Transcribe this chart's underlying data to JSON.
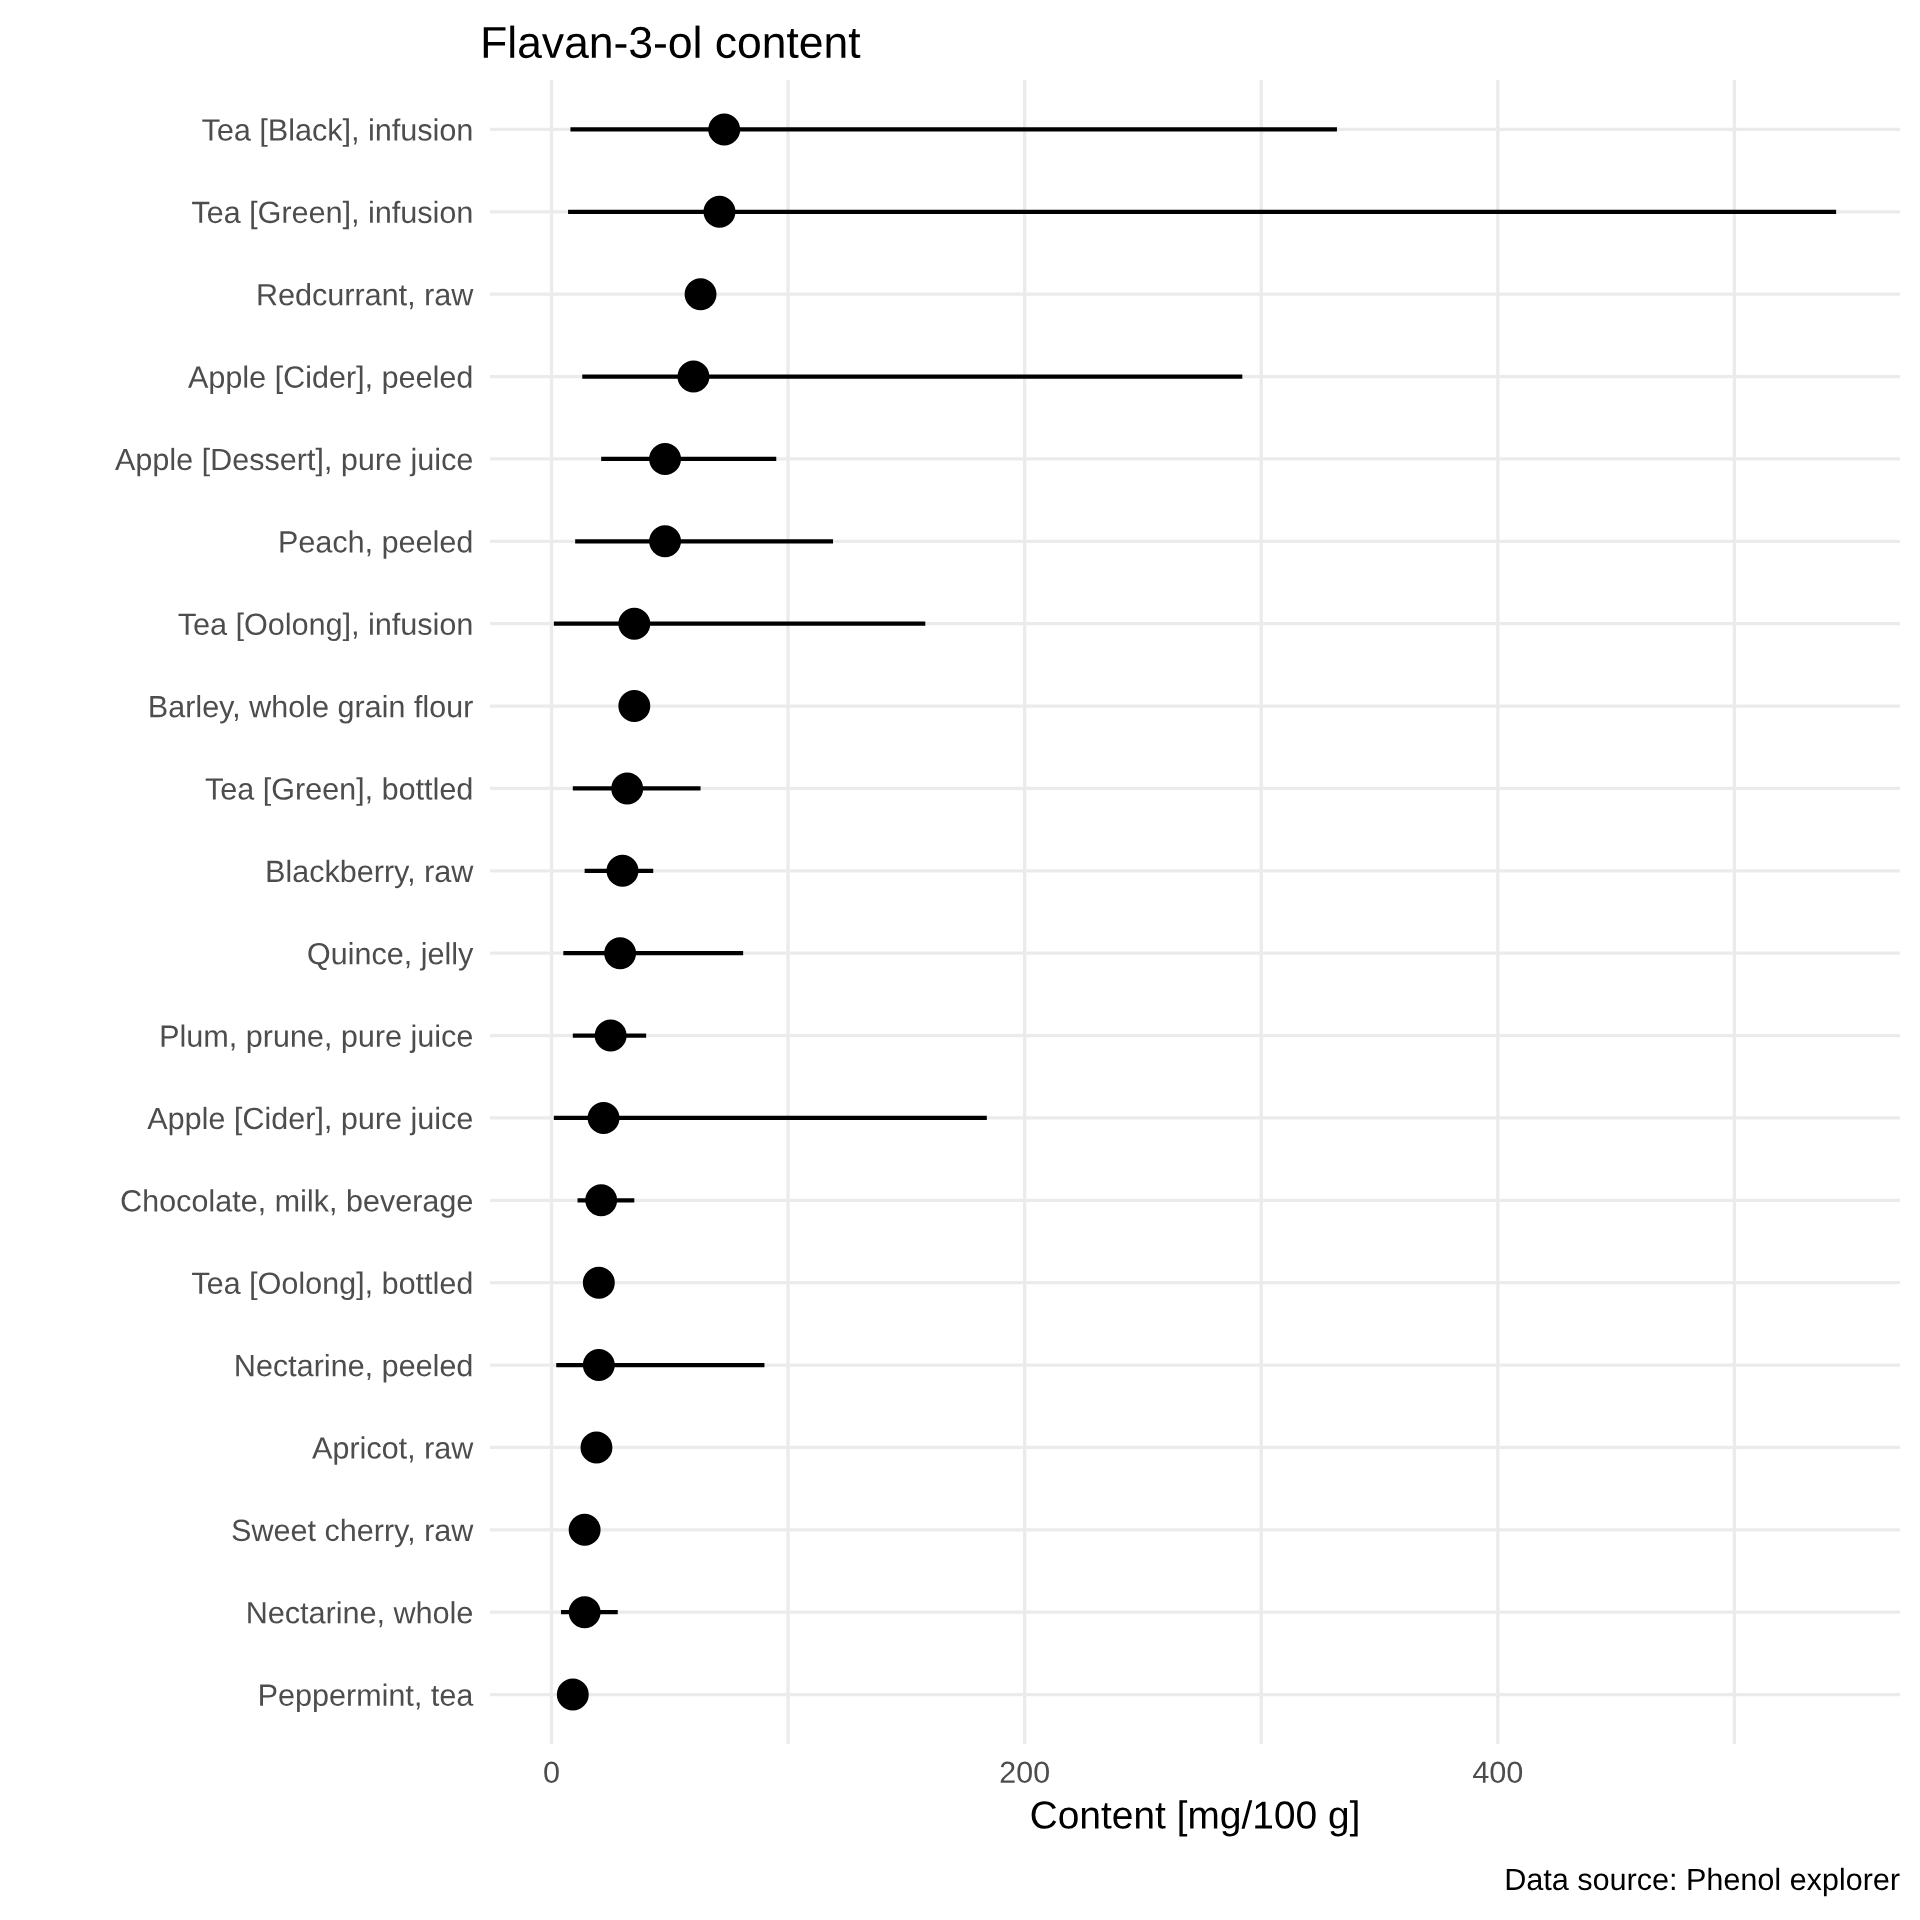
{
  "chart_data": {
    "type": "scatter",
    "orientation": "horizontal",
    "title": "Flavan-3-ol content",
    "xlabel": "Content [mg/100 g]",
    "annotations": [
      "Data source: Phenol explorer"
    ],
    "categories": [
      "Tea [Black], infusion",
      "Tea [Green], infusion",
      "Redcurrant, raw",
      "Apple [Cider], peeled",
      "Apple [Dessert], pure juice",
      "Peach, peeled",
      "Tea [Oolong], infusion",
      "Barley, whole grain flour",
      "Tea [Green], bottled",
      "Blackberry, raw",
      "Quince, jelly",
      "Plum, prune, pure juice",
      "Apple [Cider], pure juice",
      "Chocolate, milk, beverage",
      "Tea [Oolong], bottled",
      "Nectarine, peeled",
      "Apricot, raw",
      "Sweet cherry, raw",
      "Nectarine, whole",
      "Peppermint, tea"
    ],
    "values": [
      73,
      71,
      63,
      60,
      48,
      48,
      35,
      35,
      32,
      30,
      29,
      25,
      22,
      21,
      20,
      20,
      19,
      14,
      14,
      9
    ],
    "errors": [
      [
        8,
        332
      ],
      [
        7,
        543
      ],
      null,
      [
        13,
        292
      ],
      [
        21,
        95
      ],
      [
        10,
        119
      ],
      [
        1,
        158
      ],
      null,
      [
        9,
        63
      ],
      [
        14,
        43
      ],
      [
        5,
        81
      ],
      [
        9,
        40
      ],
      [
        1,
        184
      ],
      [
        11,
        35
      ],
      [
        14,
        26
      ],
      [
        2,
        90
      ],
      null,
      null,
      [
        4,
        28
      ],
      [
        5,
        14
      ]
    ],
    "color": "#000000",
    "marker": "circle",
    "xlim": [
      -26,
      570
    ],
    "xticks": [
      0,
      {
        "value": 100,
        "label": null
      },
      200,
      {
        "value": 300,
        "label": null
      },
      400,
      {
        "value": 500,
        "label": null
      }
    ],
    "grid": true
  }
}
